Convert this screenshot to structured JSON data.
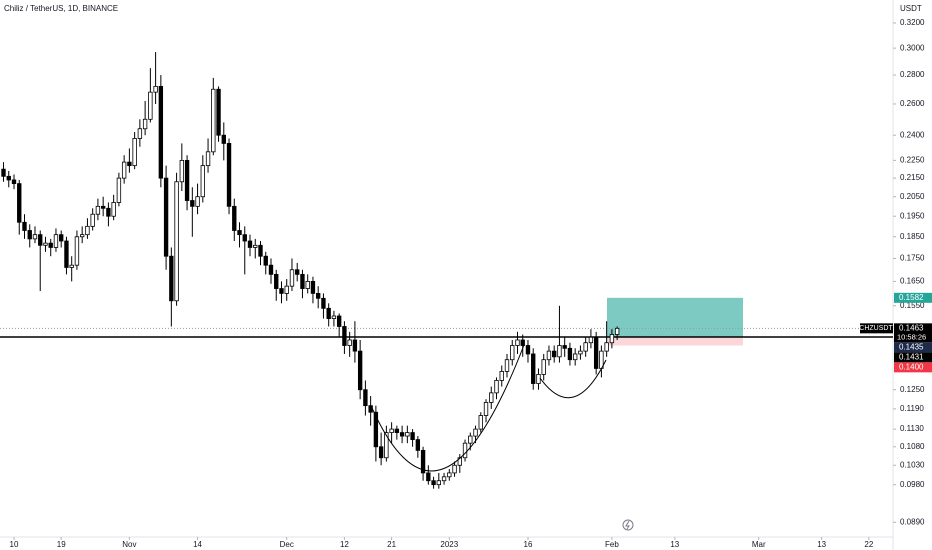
{
  "chart_data": {
    "type": "candlestick",
    "title": "Chiliz / TetherUS, 1D, BINANCE",
    "currency": "USDT",
    "symbol": "CHZUSDT",
    "countdown": "10:58:26",
    "log_scale": true,
    "ylim": [
      0.0857,
      0.3394
    ],
    "yticks": [
      {
        "value": 0.32,
        "label": "0.3200"
      },
      {
        "value": 0.3,
        "label": "0.3000"
      },
      {
        "value": 0.28,
        "label": "0.2800"
      },
      {
        "value": 0.26,
        "label": "0.2600"
      },
      {
        "value": 0.24,
        "label": "0.2400"
      },
      {
        "value": 0.225,
        "label": "0.2250"
      },
      {
        "value": 0.215,
        "label": "0.2150"
      },
      {
        "value": 0.205,
        "label": "0.2050"
      },
      {
        "value": 0.195,
        "label": "0.1950"
      },
      {
        "value": 0.185,
        "label": "0.1850"
      },
      {
        "value": 0.175,
        "label": "0.1750"
      },
      {
        "value": 0.165,
        "label": "0.1650"
      },
      {
        "value": 0.155,
        "label": "0.1550"
      },
      {
        "value": 0.125,
        "label": "0.1250"
      },
      {
        "value": 0.119,
        "label": "0.1190"
      },
      {
        "value": 0.113,
        "label": "0.1130"
      },
      {
        "value": 0.108,
        "label": "0.1080"
      },
      {
        "value": 0.103,
        "label": "0.1030"
      },
      {
        "value": 0.098,
        "label": "0.0980"
      },
      {
        "value": 0.089,
        "label": "0.0890"
      }
    ],
    "xlim": [
      -0.67,
      169.6
    ],
    "xticks": [
      {
        "value": 2,
        "label": "10"
      },
      {
        "value": 11,
        "label": "19"
      },
      {
        "value": 24,
        "label": "Nov"
      },
      {
        "value": 37,
        "label": "14"
      },
      {
        "value": 54,
        "label": "Dec"
      },
      {
        "value": 65,
        "label": "12"
      },
      {
        "value": 74,
        "label": "21"
      },
      {
        "value": 85,
        "label": "2023"
      },
      {
        "value": 100,
        "label": "16"
      },
      {
        "value": 116,
        "label": "Feb"
      },
      {
        "value": 128,
        "label": "13"
      },
      {
        "value": 144,
        "label": "Mar"
      },
      {
        "value": 156,
        "label": "13"
      },
      {
        "value": 165,
        "label": "22"
      }
    ],
    "up_color": "#ffffff",
    "down_color": "#000000",
    "ohlc": [
      [
        0.22,
        0.224,
        0.213,
        0.216
      ],
      [
        0.216,
        0.219,
        0.21,
        0.214
      ],
      [
        0.214,
        0.217,
        0.209,
        0.212
      ],
      [
        0.212,
        0.214,
        0.186,
        0.192
      ],
      [
        0.192,
        0.196,
        0.184,
        0.188
      ],
      [
        0.188,
        0.191,
        0.18,
        0.184
      ],
      [
        0.184,
        0.19,
        0.182,
        0.186
      ],
      [
        0.186,
        0.188,
        0.161,
        0.181
      ],
      [
        0.181,
        0.185,
        0.178,
        0.182
      ],
      [
        0.182,
        0.184,
        0.176,
        0.18
      ],
      [
        0.18,
        0.189,
        0.178,
        0.186
      ],
      [
        0.186,
        0.188,
        0.18,
        0.183
      ],
      [
        0.183,
        0.185,
        0.168,
        0.171
      ],
      [
        0.171,
        0.176,
        0.165,
        0.172
      ],
      [
        0.172,
        0.188,
        0.17,
        0.185
      ],
      [
        0.185,
        0.19,
        0.182,
        0.186
      ],
      [
        0.186,
        0.194,
        0.184,
        0.19
      ],
      [
        0.19,
        0.199,
        0.188,
        0.196
      ],
      [
        0.196,
        0.204,
        0.193,
        0.2
      ],
      [
        0.2,
        0.205,
        0.195,
        0.199
      ],
      [
        0.199,
        0.202,
        0.19,
        0.195
      ],
      [
        0.195,
        0.206,
        0.193,
        0.202
      ],
      [
        0.202,
        0.218,
        0.2,
        0.215
      ],
      [
        0.215,
        0.228,
        0.212,
        0.224
      ],
      [
        0.224,
        0.232,
        0.218,
        0.222
      ],
      [
        0.222,
        0.242,
        0.22,
        0.238
      ],
      [
        0.238,
        0.25,
        0.233,
        0.244
      ],
      [
        0.244,
        0.262,
        0.24,
        0.25
      ],
      [
        0.25,
        0.285,
        0.248,
        0.268
      ],
      [
        0.268,
        0.297,
        0.26,
        0.272
      ],
      [
        0.272,
        0.28,
        0.21,
        0.215
      ],
      [
        0.215,
        0.222,
        0.17,
        0.176
      ],
      [
        0.176,
        0.18,
        0.147,
        0.157
      ],
      [
        0.157,
        0.218,
        0.155,
        0.213
      ],
      [
        0.213,
        0.235,
        0.208,
        0.225
      ],
      [
        0.225,
        0.228,
        0.198,
        0.203
      ],
      [
        0.203,
        0.21,
        0.185,
        0.2
      ],
      [
        0.2,
        0.212,
        0.196,
        0.205
      ],
      [
        0.205,
        0.228,
        0.202,
        0.222
      ],
      [
        0.222,
        0.238,
        0.218,
        0.23
      ],
      [
        0.23,
        0.278,
        0.228,
        0.27
      ],
      [
        0.27,
        0.272,
        0.236,
        0.24
      ],
      [
        0.24,
        0.248,
        0.225,
        0.235
      ],
      [
        0.235,
        0.238,
        0.196,
        0.2
      ],
      [
        0.2,
        0.204,
        0.183,
        0.188
      ],
      [
        0.188,
        0.192,
        0.18,
        0.186
      ],
      [
        0.186,
        0.19,
        0.168,
        0.183
      ],
      [
        0.183,
        0.186,
        0.176,
        0.18
      ],
      [
        0.18,
        0.184,
        0.175,
        0.181
      ],
      [
        0.181,
        0.183,
        0.172,
        0.176
      ],
      [
        0.176,
        0.178,
        0.168,
        0.172
      ],
      [
        0.172,
        0.175,
        0.164,
        0.168
      ],
      [
        0.168,
        0.17,
        0.157,
        0.162
      ],
      [
        0.162,
        0.165,
        0.156,
        0.16
      ],
      [
        0.16,
        0.166,
        0.157,
        0.163
      ],
      [
        0.163,
        0.175,
        0.161,
        0.17
      ],
      [
        0.17,
        0.173,
        0.165,
        0.168
      ],
      [
        0.168,
        0.17,
        0.158,
        0.162
      ],
      [
        0.162,
        0.168,
        0.16,
        0.165
      ],
      [
        0.165,
        0.167,
        0.156,
        0.16
      ],
      [
        0.16,
        0.163,
        0.154,
        0.158
      ],
      [
        0.158,
        0.16,
        0.15,
        0.154
      ],
      [
        0.154,
        0.156,
        0.147,
        0.15
      ],
      [
        0.15,
        0.153,
        0.147,
        0.151
      ],
      [
        0.151,
        0.152,
        0.143,
        0.147
      ],
      [
        0.147,
        0.149,
        0.137,
        0.14
      ],
      [
        0.14,
        0.145,
        0.136,
        0.142
      ],
      [
        0.142,
        0.149,
        0.134,
        0.138
      ],
      [
        0.138,
        0.142,
        0.122,
        0.125
      ],
      [
        0.125,
        0.128,
        0.117,
        0.12
      ],
      [
        0.12,
        0.123,
        0.114,
        0.118
      ],
      [
        0.118,
        0.12,
        0.104,
        0.108
      ],
      [
        0.108,
        0.112,
        0.103,
        0.105
      ],
      [
        0.105,
        0.114,
        0.104,
        0.112
      ],
      [
        0.112,
        0.115,
        0.109,
        0.113
      ],
      [
        0.113,
        0.114,
        0.11,
        0.112
      ],
      [
        0.112,
        0.114,
        0.109,
        0.111
      ],
      [
        0.111,
        0.114,
        0.109,
        0.112
      ],
      [
        0.112,
        0.113,
        0.108,
        0.11
      ],
      [
        0.11,
        0.111,
        0.105,
        0.107
      ],
      [
        0.107,
        0.108,
        0.099,
        0.101
      ],
      [
        0.101,
        0.103,
        0.098,
        0.099
      ],
      [
        0.099,
        0.1,
        0.097,
        0.098
      ],
      [
        0.098,
        0.101,
        0.097,
        0.099
      ],
      [
        0.099,
        0.101,
        0.098,
        0.1
      ],
      [
        0.1,
        0.102,
        0.099,
        0.101
      ],
      [
        0.101,
        0.104,
        0.1,
        0.103
      ],
      [
        0.103,
        0.106,
        0.101,
        0.105
      ],
      [
        0.105,
        0.11,
        0.104,
        0.109
      ],
      [
        0.109,
        0.112,
        0.107,
        0.111
      ],
      [
        0.111,
        0.114,
        0.109,
        0.113
      ],
      [
        0.113,
        0.118,
        0.112,
        0.117
      ],
      [
        0.117,
        0.122,
        0.115,
        0.121
      ],
      [
        0.121,
        0.126,
        0.119,
        0.124
      ],
      [
        0.124,
        0.129,
        0.122,
        0.128
      ],
      [
        0.128,
        0.133,
        0.126,
        0.131
      ],
      [
        0.131,
        0.137,
        0.129,
        0.135
      ],
      [
        0.135,
        0.142,
        0.133,
        0.14
      ],
      [
        0.14,
        0.145,
        0.137,
        0.142
      ],
      [
        0.142,
        0.144,
        0.136,
        0.14
      ],
      [
        0.14,
        0.142,
        0.134,
        0.137
      ],
      [
        0.137,
        0.139,
        0.125,
        0.127
      ],
      [
        0.127,
        0.132,
        0.125,
        0.13
      ],
      [
        0.13,
        0.137,
        0.128,
        0.135
      ],
      [
        0.135,
        0.14,
        0.133,
        0.138
      ],
      [
        0.138,
        0.14,
        0.134,
        0.136
      ],
      [
        0.136,
        0.155,
        0.134,
        0.14
      ],
      [
        0.14,
        0.143,
        0.136,
        0.139
      ],
      [
        0.139,
        0.141,
        0.133,
        0.135
      ],
      [
        0.135,
        0.139,
        0.133,
        0.137
      ],
      [
        0.137,
        0.14,
        0.135,
        0.138
      ],
      [
        0.138,
        0.143,
        0.136,
        0.141
      ],
      [
        0.141,
        0.146,
        0.139,
        0.143
      ],
      [
        0.143,
        0.145,
        0.13,
        0.132
      ],
      [
        0.132,
        0.14,
        0.129,
        0.138
      ],
      [
        0.138,
        0.149,
        0.136,
        0.141
      ],
      [
        0.141,
        0.146,
        0.139,
        0.144
      ],
      [
        0.144,
        0.147,
        0.142,
        0.1463
      ]
    ],
    "current_price": {
      "value": 0.1463,
      "label": "0.1463",
      "color": "#000000"
    },
    "position": {
      "target": {
        "value": 0.1582,
        "label": "0.1582",
        "color": "#26a69a"
      },
      "entry": {
        "value": 0.1431,
        "label": "0.1431",
        "color": "#000000"
      },
      "stop": {
        "value": 0.14,
        "label": "0.1400",
        "color": "#f23645"
      }
    },
    "price_marker": {
      "value": 0.1435,
      "label": "0.1435",
      "color": "#1e2a4a"
    }
  }
}
